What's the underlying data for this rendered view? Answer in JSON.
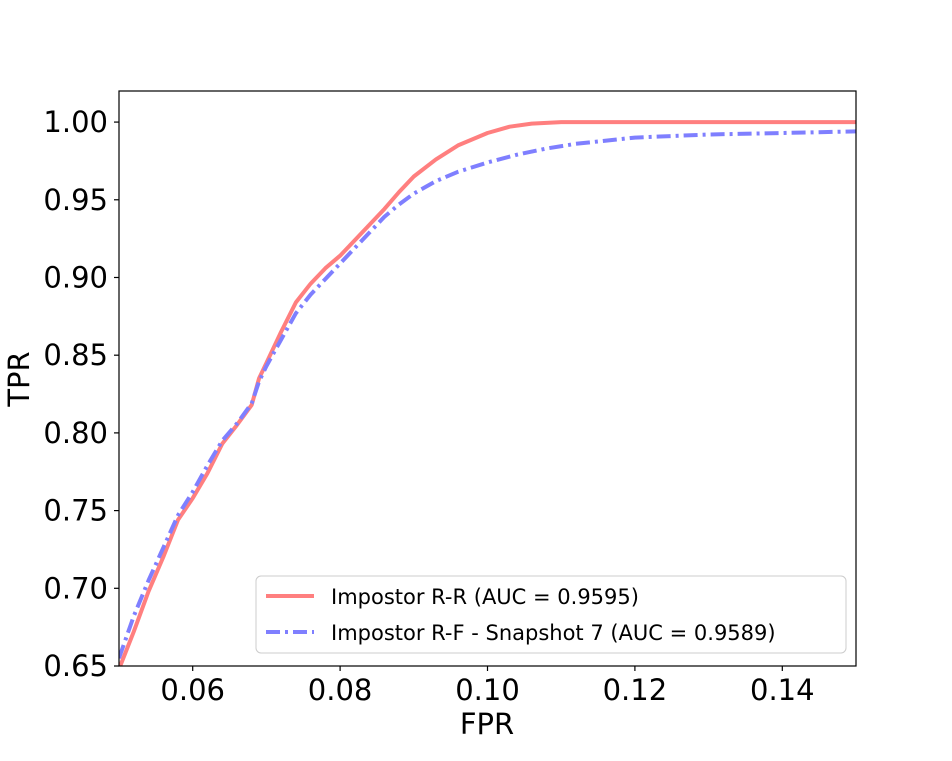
{
  "chart_data": {
    "type": "line",
    "title": "",
    "xlabel": "FPR",
    "ylabel": "TPR",
    "xlim": [
      0.05,
      0.15
    ],
    "ylim": [
      0.65,
      1.02
    ],
    "grid": false,
    "legend_position": "lower-right",
    "x_ticks": [
      0.06,
      0.08,
      0.1,
      0.12,
      0.14
    ],
    "x_tick_labels": [
      "0.06",
      "0.08",
      "0.10",
      "0.12",
      "0.14"
    ],
    "y_ticks": [
      0.65,
      0.7,
      0.75,
      0.8,
      0.85,
      0.9,
      0.95,
      1.0
    ],
    "y_tick_labels": [
      "0.65",
      "0.70",
      "0.75",
      "0.80",
      "0.85",
      "0.90",
      "0.95",
      "1.00"
    ],
    "series": [
      {
        "name": "Impostor R-R (AUC = 0.9595)",
        "color": "#ff7f7f",
        "style": "solid",
        "x": [
          0.05,
          0.052,
          0.054,
          0.056,
          0.058,
          0.06,
          0.062,
          0.064,
          0.066,
          0.068,
          0.069,
          0.07,
          0.072,
          0.074,
          0.076,
          0.078,
          0.08,
          0.082,
          0.084,
          0.086,
          0.088,
          0.09,
          0.093,
          0.096,
          0.1,
          0.103,
          0.106,
          0.11,
          0.12,
          0.13,
          0.14,
          0.15
        ],
        "y": [
          0.648,
          0.672,
          0.698,
          0.72,
          0.744,
          0.758,
          0.774,
          0.793,
          0.805,
          0.818,
          0.835,
          0.845,
          0.865,
          0.884,
          0.896,
          0.906,
          0.914,
          0.924,
          0.934,
          0.944,
          0.955,
          0.965,
          0.976,
          0.985,
          0.993,
          0.997,
          0.999,
          1.0,
          1.0,
          1.0,
          1.0,
          1.0
        ]
      },
      {
        "name": "Impostor R-F - Snapshot 7 (AUC = 0.9589)",
        "color": "#7f7fff",
        "style": "dashdot",
        "x": [
          0.05,
          0.052,
          0.054,
          0.056,
          0.058,
          0.06,
          0.062,
          0.064,
          0.066,
          0.068,
          0.069,
          0.07,
          0.072,
          0.074,
          0.076,
          0.078,
          0.08,
          0.082,
          0.084,
          0.086,
          0.088,
          0.09,
          0.093,
          0.096,
          0.1,
          0.104,
          0.108,
          0.112,
          0.12,
          0.13,
          0.14,
          0.15
        ],
        "y": [
          0.655,
          0.682,
          0.705,
          0.726,
          0.747,
          0.762,
          0.779,
          0.795,
          0.806,
          0.819,
          0.833,
          0.843,
          0.86,
          0.877,
          0.889,
          0.899,
          0.909,
          0.919,
          0.929,
          0.939,
          0.947,
          0.954,
          0.962,
          0.968,
          0.974,
          0.979,
          0.983,
          0.986,
          0.99,
          0.992,
          0.993,
          0.994
        ]
      }
    ]
  }
}
